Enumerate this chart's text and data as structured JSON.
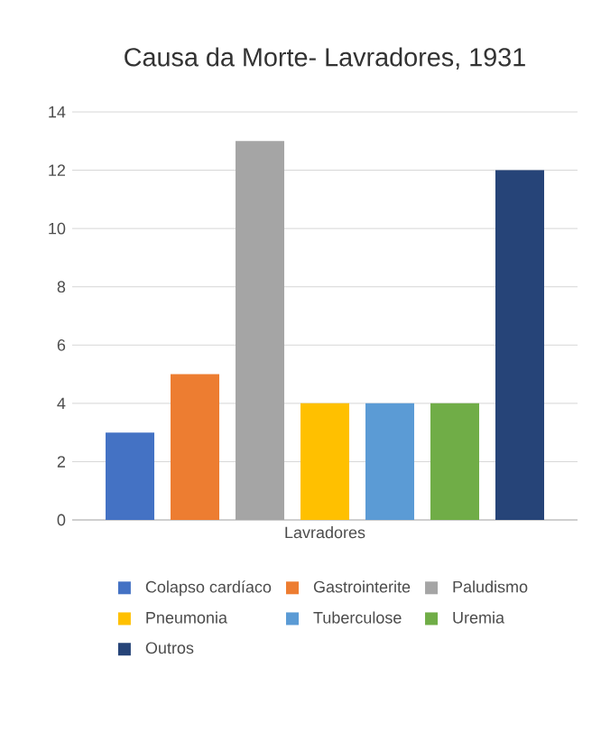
{
  "chart_data": {
    "type": "bar",
    "title": "Causa da Morte- Lavradores, 1931",
    "categories": [
      "Lavradores"
    ],
    "series": [
      {
        "name": "Colapso cardíaco",
        "color": "#4472c4",
        "values": [
          3
        ]
      },
      {
        "name": "Gastrointerite",
        "color": "#ed7d31",
        "values": [
          5
        ]
      },
      {
        "name": "Paludismo",
        "color": "#a5a5a5",
        "values": [
          13
        ]
      },
      {
        "name": "Pneumonia",
        "color": "#ffc000",
        "values": [
          4
        ]
      },
      {
        "name": "Tuberculose",
        "color": "#5b9bd5",
        "values": [
          4
        ]
      },
      {
        "name": "Uremia",
        "color": "#70ad47",
        "values": [
          4
        ]
      },
      {
        "name": "Outros",
        "color": "#264478",
        "values": [
          12
        ]
      }
    ],
    "ylim": [
      0,
      14
    ],
    "yticks": [
      0,
      2,
      4,
      6,
      8,
      10,
      12,
      14
    ],
    "grid": "y",
    "legend": "bottom"
  }
}
